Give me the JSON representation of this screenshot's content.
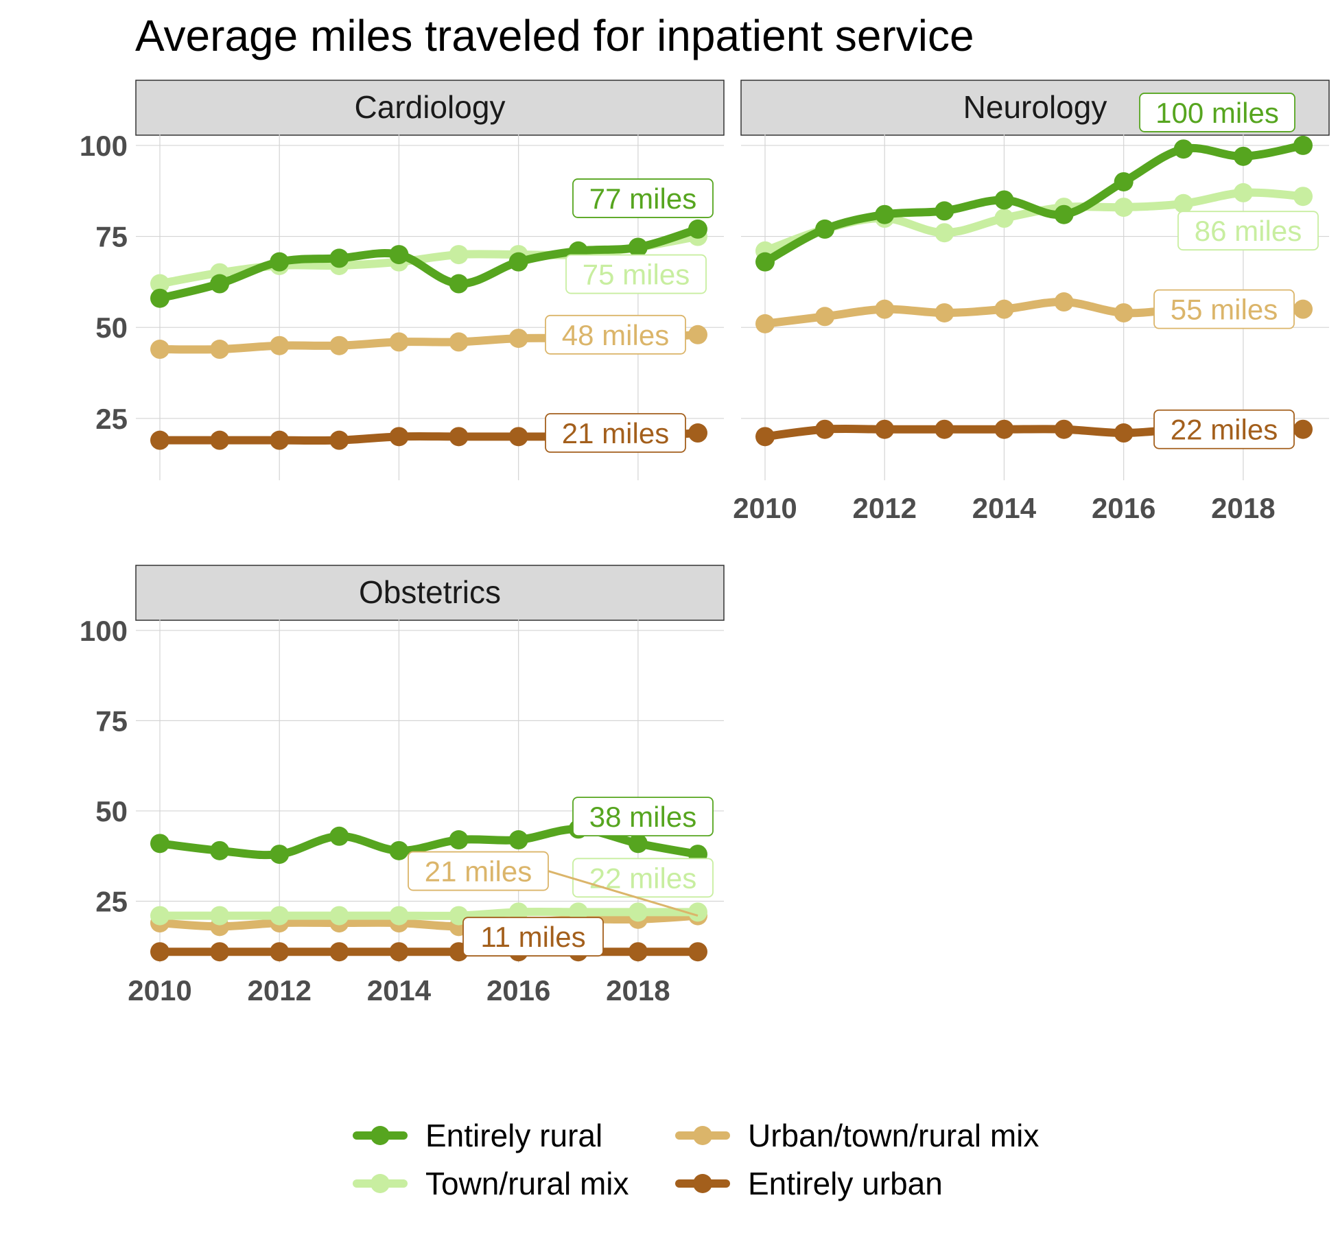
{
  "chart_data": {
    "type": "line",
    "title": "Average miles traveled for inpatient service",
    "x": [
      2010,
      2011,
      2012,
      2013,
      2014,
      2015,
      2016,
      2017,
      2018,
      2019
    ],
    "x_ticks": [
      "2010",
      "2012",
      "2014",
      "2016",
      "2018"
    ],
    "y_ticks": [
      "25",
      "50",
      "75",
      "100"
    ],
    "ylim": [
      8,
      103
    ],
    "grid": true,
    "legend_position": "bottom",
    "series_names": [
      "Entirely rural",
      "Town/rural mix",
      "Urban/town/rural mix",
      "Entirely urban"
    ],
    "series_colors": [
      "#56a51f",
      "#c8eea0",
      "#dbb56a",
      "#a35f1c"
    ],
    "panels": [
      {
        "name": "Cardiology",
        "series": [
          {
            "name": "Entirely rural",
            "values": [
              58,
              62,
              68,
              69,
              70,
              62,
              68,
              71,
              72,
              77
            ],
            "end_label": "77 miles"
          },
          {
            "name": "Town/rural mix",
            "values": [
              62,
              65,
              67,
              67,
              68,
              70,
              70,
              70,
              72,
              75
            ],
            "end_label": "75 miles"
          },
          {
            "name": "Urban/town/rural mix",
            "values": [
              44,
              44,
              45,
              45,
              46,
              46,
              47,
              47,
              47,
              48
            ],
            "end_label": "48 miles"
          },
          {
            "name": "Entirely urban",
            "values": [
              19,
              19,
              19,
              19,
              20,
              20,
              20,
              20,
              20,
              21
            ],
            "end_label": "21 miles"
          }
        ]
      },
      {
        "name": "Neurology",
        "series": [
          {
            "name": "Entirely rural",
            "values": [
              68,
              77,
              81,
              82,
              85,
              81,
              90,
              99,
              97,
              100
            ],
            "end_label": "100 miles"
          },
          {
            "name": "Town/rural mix",
            "values": [
              71,
              77,
              80,
              76,
              80,
              83,
              83,
              84,
              87,
              86
            ],
            "end_label": "86 miles"
          },
          {
            "name": "Urban/town/rural mix",
            "values": [
              51,
              53,
              55,
              54,
              55,
              57,
              54,
              55,
              55,
              55
            ],
            "end_label": "55 miles"
          },
          {
            "name": "Entirely urban",
            "values": [
              20,
              22,
              22,
              22,
              22,
              22,
              21,
              22,
              22,
              22
            ],
            "end_label": "22 miles"
          }
        ]
      },
      {
        "name": "Obstetrics",
        "series": [
          {
            "name": "Entirely rural",
            "values": [
              41,
              39,
              38,
              43,
              39,
              42,
              42,
              45,
              41,
              38
            ],
            "end_label": "38 miles"
          },
          {
            "name": "Town/rural mix",
            "values": [
              21,
              21,
              21,
              21,
              21,
              21,
              22,
              22,
              22,
              22
            ],
            "end_label": "22 miles"
          },
          {
            "name": "Urban/town/rural mix",
            "values": [
              19,
              18,
              19,
              19,
              19,
              18,
              19,
              20,
              20,
              21
            ],
            "end_label": "21 miles"
          },
          {
            "name": "Entirely urban",
            "values": [
              11,
              11,
              11,
              11,
              11,
              11,
              11,
              11,
              11,
              11
            ],
            "end_label": "11 miles"
          }
        ]
      }
    ]
  }
}
